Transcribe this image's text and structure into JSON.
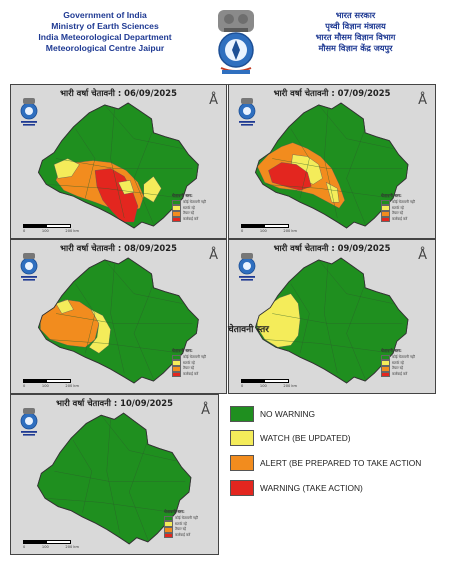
{
  "header": {
    "english_lines": [
      "Government of India",
      "Ministry of Earth Sciences",
      "India Meteorological Department",
      "Meteorological Centre Jaipur"
    ],
    "hindi_lines": [
      "भारत सरकार",
      "पृथ्वी विज्ञान मंत्रालय",
      "भारत मौसम विज्ञान विभाग",
      "मौसम विज्ञान केंद्र जयपुर"
    ],
    "emblem_icon": "national-emblem-icon"
  },
  "colors": {
    "no_warning": "#1f8f1f",
    "watch": "#f4ec5a",
    "alert": "#f28c1e",
    "warning": "#e3261f",
    "map_bg": "#d9d9d9"
  },
  "panels": [
    {
      "title": "भारी वर्षा चेतावनी : 06/09/2025",
      "scale": [
        "0",
        "100",
        "200 km"
      ],
      "legend_title": "चेतावनी स्तर:",
      "legend_items": [
        "कोई चेतावनी नहीं",
        "सतर्क रहें",
        "तैयार रहें",
        "कार्रवाई करें"
      ]
    },
    {
      "title": "भारी वर्षा चेतावनी : 07/09/2025",
      "scale": [
        "0",
        "100",
        "200 km"
      ],
      "legend_title": "चेतावनी स्तर:",
      "legend_items": [
        "कोई चेतावनी नहीं",
        "सतर्क रहें",
        "तैयार रहें",
        "कार्रवाई करें"
      ]
    },
    {
      "title": "भारी वर्षा चेतावनी : 08/09/2025",
      "scale": [
        "0",
        "100",
        "200 km"
      ],
      "legend_title": "चेतावनी स्तर:",
      "legend_items": [
        "कोई चेतावनी नहीं",
        "सतर्क रहें",
        "तैयार रहें",
        "कार्रवाई करें"
      ]
    },
    {
      "title": "भारी वर्षा चेतावनी : 09/09/2025",
      "scale": [
        "0",
        "100",
        "200 km"
      ],
      "legend_title": "चेतावनी स्तर:",
      "legend_items": [
        "कोई चेतावनी नहीं",
        "सतर्क रहें",
        "तैयार रहें",
        "कार्रवाई करें"
      ]
    },
    {
      "title": "भारी वर्षा चेतावनी : 10/09/2025",
      "scale": [
        "0",
        "100",
        "200 km"
      ],
      "legend_title": "चेतावनी स्तर:",
      "legend_items": [
        "कोई चेतावनी नहीं",
        "सतर्क रहें",
        "तैयार रहें",
        "कार्रवाई करें"
      ]
    }
  ],
  "legend": {
    "title": "चेतावनी स्तर",
    "items": [
      {
        "label": "NO WARNING",
        "color": "#1f8f1f"
      },
      {
        "label": "WATCH (BE UPDATED)",
        "color": "#f4ec5a"
      },
      {
        "label": "ALERT (BE PREPARED TO TAKE ACTION",
        "color": "#f28c1e"
      },
      {
        "label": "WARNING (TAKE ACTION)",
        "color": "#e3261f"
      }
    ]
  }
}
